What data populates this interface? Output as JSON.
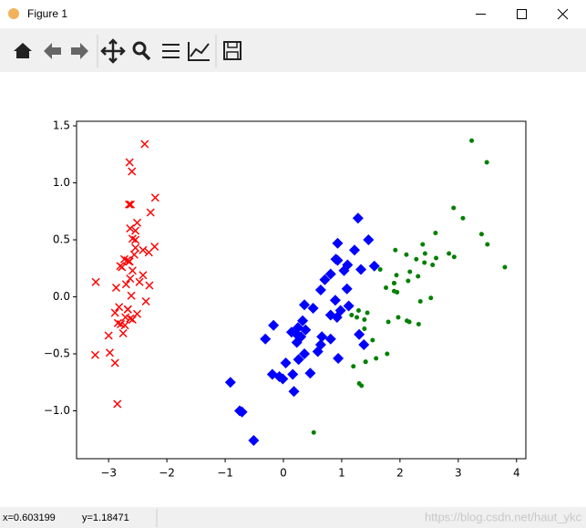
{
  "window": {
    "title": "Figure 1"
  },
  "status": {
    "x": "x=0.603199",
    "y": "y=1.18471",
    "watermark": "https://blog.csdn.net/haut_ykc"
  },
  "chart_data": {
    "type": "scatter",
    "xlim": [
      -3.55,
      4.16
    ],
    "ylim": [
      -1.42,
      1.54
    ],
    "xticks": [
      {
        "value": -3,
        "label": "−3"
      },
      {
        "value": -2,
        "label": "−2"
      },
      {
        "value": -1,
        "label": "−1"
      },
      0,
      1,
      2,
      3,
      4
    ],
    "yticks": [
      {
        "value": -1.0,
        "label": "−1.0"
      },
      {
        "value": -0.5,
        "label": "−0.5"
      },
      {
        "value": 0.0,
        "label": "0.0"
      },
      0.5,
      {
        "value": 1.0,
        "label": "1.0"
      },
      1.5
    ],
    "series": [
      {
        "color": "#ff0000",
        "marker": "x",
        "x": [
          -2.68,
          -2.71,
          -2.89,
          -2.75,
          -2.73,
          -2.28,
          -2.82,
          -2.63,
          -2.89,
          -2.67,
          -2.51,
          -2.61,
          -2.79,
          -3.23,
          -2.64,
          -2.38,
          -2.62,
          -2.65,
          -2.2,
          -2.59,
          -2.31,
          -2.54,
          -3.22,
          -2.3,
          -2.36,
          -2.51,
          -2.47,
          -2.56,
          -2.64,
          -2.63,
          -2.59,
          -2.41,
          -2.65,
          -2.6,
          -2.67,
          -2.87,
          -2.63,
          -2.8,
          -2.98,
          -2.59,
          -2.77,
          -2.85,
          -3.0,
          -2.41,
          -2.21,
          -2.72,
          -2.54,
          -2.84,
          -2.54,
          -2.7
        ],
        "y": [
          0.32,
          -0.18,
          -0.14,
          -0.32,
          0.33,
          0.74,
          -0.09,
          0.16,
          -0.58,
          -0.11,
          0.65,
          0.01,
          -0.24,
          -0.51,
          1.18,
          1.34,
          0.81,
          0.31,
          0.87,
          0.51,
          0.39,
          0.43,
          0.13,
          0.1,
          -0.04,
          -0.15,
          0.13,
          0.37,
          0.31,
          -0.19,
          -0.2,
          0.41,
          0.81,
          1.1,
          -0.11,
          0.08,
          0.6,
          0.27,
          -0.49,
          0.23,
          0.26,
          -0.94,
          -0.34,
          0.19,
          0.44,
          -0.25,
          0.5,
          -0.23,
          0.58,
          0.11
        ]
      },
      {
        "color": "#0000ff",
        "marker": "D",
        "x": [
          1.28,
          0.93,
          1.46,
          0.18,
          1.09,
          0.64,
          1.1,
          -0.75,
          1.04,
          -0.01,
          -0.51,
          0.51,
          0.26,
          0.98,
          -0.17,
          0.93,
          0.66,
          0.23,
          0.94,
          0.04,
          1.12,
          0.36,
          1.3,
          0.92,
          0.71,
          0.9,
          1.33,
          1.56,
          0.81,
          -0.31,
          -0.07,
          -0.19,
          0.14,
          1.38,
          0.59,
          0.81,
          1.22,
          0.81,
          0.25,
          0.16,
          0.46,
          0.89,
          0.23,
          -0.71,
          0.36,
          0.33,
          0.38,
          0.64,
          -0.91,
          0.3
        ],
        "y": [
          0.69,
          0.32,
          0.5,
          -0.83,
          0.07,
          -0.42,
          0.28,
          -1.0,
          0.23,
          -0.72,
          -1.26,
          -0.1,
          -0.55,
          -0.12,
          -0.25,
          0.47,
          -0.35,
          -0.33,
          -0.54,
          -0.58,
          -0.08,
          -0.07,
          -0.33,
          -0.18,
          0.15,
          0.33,
          0.24,
          0.27,
          -0.16,
          -0.37,
          -0.7,
          -0.68,
          -0.31,
          -0.42,
          -0.48,
          0.2,
          0.41,
          -0.37,
          -0.27,
          -0.68,
          -0.67,
          -0.03,
          -0.4,
          -1.01,
          -0.5,
          -0.21,
          -0.29,
          0.06,
          -0.75,
          -0.35
        ]
      },
      {
        "color": "#008000",
        "marker": ".",
        "x": [
          2.53,
          1.41,
          2.62,
          1.97,
          2.35,
          3.4,
          0.52,
          2.93,
          2.32,
          2.92,
          1.66,
          1.8,
          2.17,
          1.34,
          1.59,
          1.9,
          1.95,
          3.49,
          3.8,
          1.3,
          2.43,
          1.2,
          3.5,
          1.39,
          2.28,
          2.61,
          1.26,
          1.29,
          2.12,
          2.39,
          2.84,
          3.23,
          2.16,
          1.44,
          1.78,
          3.08,
          2.14,
          1.9,
          1.17,
          2.11,
          2.31,
          1.92,
          1.41,
          2.56,
          2.42,
          1.94,
          1.53,
          1.76,
          1.9,
          1.39
        ],
        "y": [
          -0.01,
          -0.57,
          0.34,
          -0.18,
          -0.04,
          0.55,
          -1.19,
          0.35,
          -0.24,
          0.78,
          0.24,
          -0.22,
          0.22,
          -0.78,
          -0.54,
          0.12,
          0.04,
          1.18,
          0.26,
          -0.76,
          0.38,
          -0.61,
          0.46,
          -0.2,
          0.33,
          0.56,
          -0.18,
          -0.12,
          -0.21,
          0.46,
          0.38,
          1.37,
          -0.22,
          -0.14,
          -0.5,
          0.69,
          0.14,
          0.05,
          -0.16,
          0.37,
          0.18,
          0.41,
          -0.57,
          0.28,
          0.3,
          0.19,
          -0.38,
          0.08,
          0.12,
          -0.28
        ]
      }
    ]
  }
}
